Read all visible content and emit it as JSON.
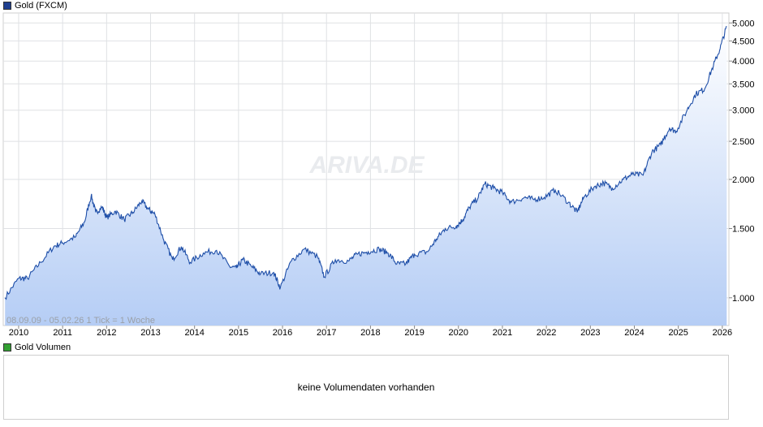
{
  "legend": {
    "price_label": "Gold (FXCM)",
    "volume_label": "Gold Volumen",
    "price_color": "#1f3f8f",
    "volume_color": "#33a033"
  },
  "watermark": "ARIVA.DE",
  "range_info": "08.09.09 - 05.02.26   1 Tick = 1 Woche",
  "volume_panel": {
    "message": "keine Volumendaten vorhanden"
  },
  "chart_data": {
    "type": "area",
    "series": [
      {
        "name": "Gold (FXCM)",
        "color": "#1f4fa8"
      }
    ],
    "x": [
      2009.69,
      2010.0,
      2010.2,
      2010.5,
      2010.8,
      2011.0,
      2011.3,
      2011.5,
      2011.65,
      2011.75,
      2011.9,
      2012.0,
      2012.2,
      2012.4,
      2012.6,
      2012.8,
      2012.95,
      2013.1,
      2013.3,
      2013.5,
      2013.7,
      2013.9,
      2014.2,
      2014.5,
      2014.8,
      2014.95,
      2015.1,
      2015.3,
      2015.5,
      2015.8,
      2015.95,
      2016.2,
      2016.5,
      2016.8,
      2016.95,
      2017.2,
      2017.5,
      2017.7,
      2017.95,
      2018.2,
      2018.4,
      2018.6,
      2018.8,
      2019.0,
      2019.3,
      2019.5,
      2019.7,
      2019.95,
      2020.1,
      2020.25,
      2020.45,
      2020.6,
      2020.8,
      2021.0,
      2021.2,
      2021.5,
      2021.7,
      2021.95,
      2022.2,
      2022.5,
      2022.7,
      2022.85,
      2023.1,
      2023.3,
      2023.5,
      2023.75,
      2023.95,
      2024.2,
      2024.4,
      2024.6,
      2024.8,
      2024.95,
      2025.2,
      2025.4,
      2025.6,
      2025.8,
      2025.95,
      2026.1
    ],
    "y": [
      1000,
      1120,
      1120,
      1230,
      1350,
      1380,
      1430,
      1560,
      1820,
      1650,
      1700,
      1600,
      1660,
      1580,
      1650,
      1760,
      1680,
      1630,
      1400,
      1250,
      1350,
      1230,
      1300,
      1320,
      1200,
      1190,
      1250,
      1200,
      1150,
      1160,
      1060,
      1240,
      1330,
      1270,
      1130,
      1250,
      1240,
      1290,
      1310,
      1330,
      1300,
      1220,
      1220,
      1290,
      1310,
      1410,
      1500,
      1520,
      1580,
      1700,
      1800,
      1950,
      1900,
      1850,
      1750,
      1800,
      1780,
      1800,
      1880,
      1750,
      1650,
      1800,
      1920,
      1960,
      1900,
      2000,
      2060,
      2050,
      2350,
      2450,
      2700,
      2650,
      3000,
      3300,
      3400,
      3900,
      4300,
      4900
    ],
    "xlim": [
      2009.65,
      2026.15
    ],
    "ylim": [
      850,
      5300
    ],
    "yscale": "log",
    "yticks": [
      1000,
      1500,
      2000,
      2500,
      3000,
      3500,
      4000,
      4500,
      5000
    ],
    "ytick_labels": [
      "1.000",
      "1.500",
      "2.000",
      "2.500",
      "3.000",
      "3.500",
      "4.000",
      "4.500",
      "5.000"
    ],
    "xticks": [
      2010,
      2011,
      2012,
      2013,
      2014,
      2015,
      2016,
      2017,
      2018,
      2019,
      2020,
      2021,
      2022,
      2023,
      2024,
      2025,
      2026
    ],
    "xtick_labels": [
      "2010",
      "2011",
      "2012",
      "2013",
      "2014",
      "2015",
      "2016",
      "2017",
      "2018",
      "2019",
      "2020",
      "2021",
      "2022",
      "2023",
      "2024",
      "2025",
      "2026"
    ],
    "grid": true,
    "legend": "top-left"
  }
}
